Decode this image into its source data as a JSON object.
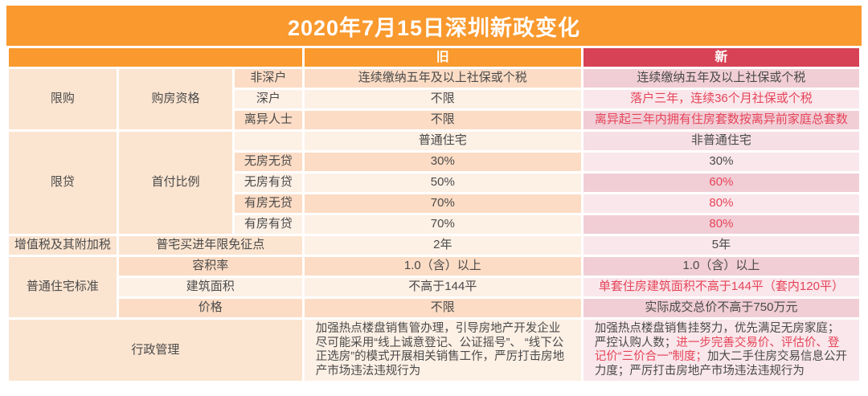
{
  "title": "2020年7月15日深圳新政变化",
  "colors": {
    "accent_orange": "#F9992E",
    "accent_red_header": "#D84256",
    "changed_text_red": "#E64459",
    "old_row_dark": "#FCDCC5",
    "old_row_light": "#FDF0E5",
    "new_row_dark": "#F1CED6",
    "new_row_light": "#F9E7EB"
  },
  "header": {
    "old": "旧",
    "new": "新"
  },
  "groups": {
    "purchase_limit": {
      "category": "限购",
      "label": "购房资格"
    },
    "loan_limit": {
      "category": "限贷",
      "label": "首付比例"
    },
    "vat": {
      "category": "增值税及其附加税",
      "label": "普宅买进年限免征点"
    },
    "ordinary_standard": {
      "category": "普通住宅标准"
    },
    "admin": {
      "category": "行政管理"
    }
  },
  "rows": [
    {
      "sub": "非深户",
      "old": "连续缴纳五年及以上社保或个税",
      "new": "连续缴纳五年及以上社保或个税"
    },
    {
      "sub": "深户",
      "old": "不限",
      "new": "落户三年，连续36个月社保或个税"
    },
    {
      "sub": "离异人士",
      "old": "不限",
      "new": "离异起三年内拥有住房套数按离异前家庭总套数"
    },
    {
      "sub": "",
      "old": "普通住宅",
      "new": "非普通住宅"
    },
    {
      "sub": "无房无贷",
      "old": "30%",
      "new": "30%"
    },
    {
      "sub": "无房有贷",
      "old": "50%",
      "new": "60%"
    },
    {
      "sub": "有房无贷",
      "old": "70%",
      "new": "80%"
    },
    {
      "sub": "有房有贷",
      "old": "70%",
      "new": "80%"
    },
    {
      "old": "2年",
      "new": "5年"
    },
    {
      "sub": "容积率",
      "old": "1.0（含）以上",
      "new": "1.0（含）以上"
    },
    {
      "sub": "建筑面积",
      "old": "不高于144平",
      "new": "单套住房建筑面积不高于144平（套内120平）"
    },
    {
      "sub": "价格",
      "old": "不限",
      "new": "实际成交总价不高于750万元"
    },
    {
      "old": "加强热点楼盘销售管办理，引导房地产开发企业尽可能采用“线上诚意登记、公证摇号”、 “线下公正选房”的模式开展相关销售工作，严厉打击房地产市场违法违规行为",
      "new_parts": [
        {
          "text": "加强热点楼盘销售挂努力，优先满足无房家庭；严控认购人数；",
          "red": false
        },
        {
          "text": "进一步完善交易价、评估价、登记价“三价合一”制度；",
          "red": true
        },
        {
          "text": "加大二手住房交易信息公开力度；严厉打击房地产市场违法违规行为",
          "red": false
        }
      ]
    }
  ]
}
